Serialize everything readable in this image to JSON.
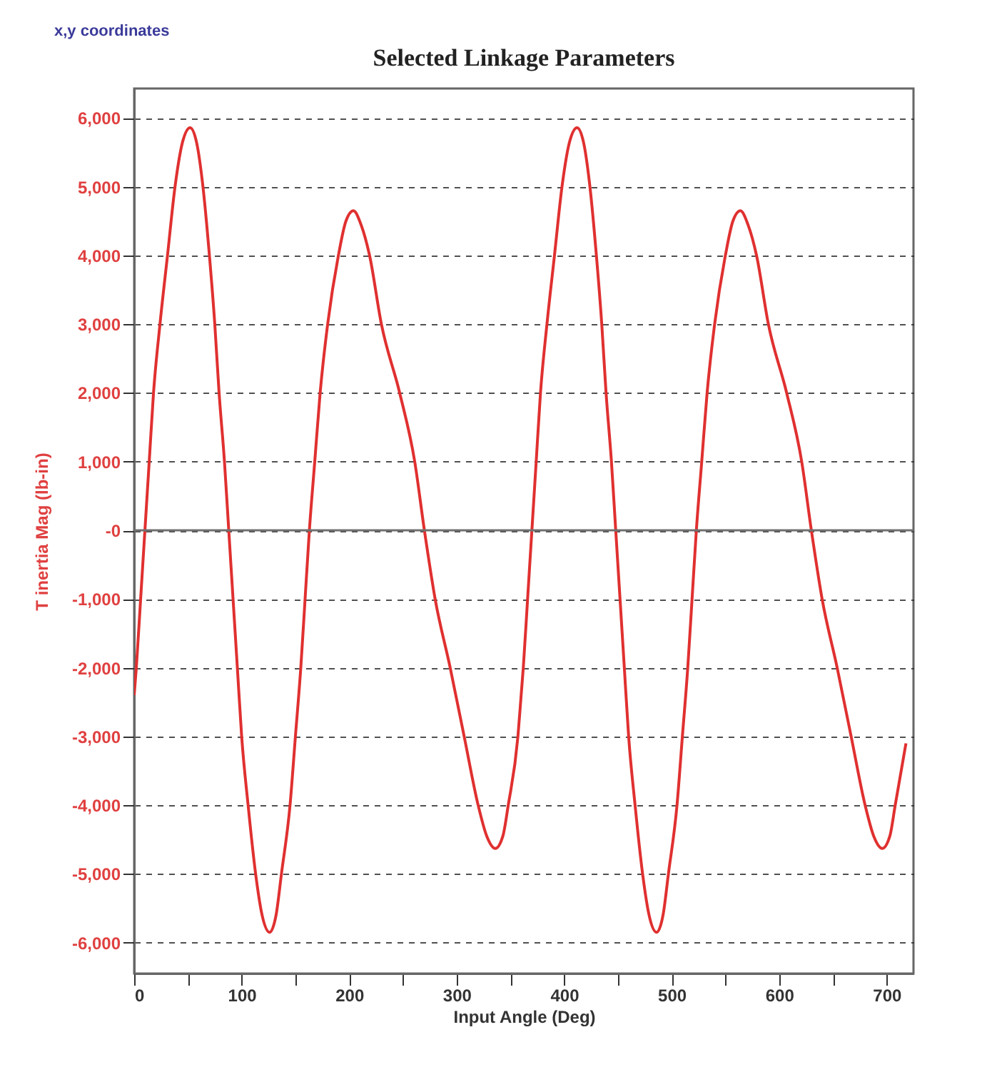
{
  "chart_data": {
    "type": "line",
    "title": "Selected Linkage Parameters",
    "xlabel": "Input Angle (Deg)",
    "ylabel": "T inertia Mag (lb-in)",
    "annotations": [
      "x,y coordinates"
    ],
    "x": [
      0,
      2,
      6,
      10,
      14,
      18,
      24,
      31,
      38,
      45,
      52,
      58,
      64,
      70,
      75,
      79,
      84,
      88,
      92,
      96,
      100,
      106,
      113,
      119,
      126,
      132,
      137,
      145,
      150,
      155,
      159,
      163,
      168,
      173,
      180,
      190,
      197,
      204,
      211,
      219,
      230,
      247,
      261,
      270,
      280,
      294,
      307,
      320,
      328,
      336,
      343,
      348,
      357,
      360,
      362,
      366,
      370,
      374,
      378,
      384,
      391,
      398,
      405,
      412,
      418,
      424,
      430,
      435,
      439,
      444,
      448,
      452,
      456,
      460,
      466,
      473,
      479,
      486,
      492,
      497,
      505,
      510,
      515,
      519,
      523,
      528,
      533,
      540,
      550,
      557,
      564,
      571,
      579,
      590,
      607,
      621,
      630,
      640,
      654,
      667,
      680,
      688,
      696,
      703,
      708,
      718
    ],
    "series": [
      {
        "color": "#e03030",
        "values": [
          -2400,
          -2000,
          -1000,
          0,
          1000,
          2000,
          3000,
          4000,
          5000,
          5650,
          5860,
          5650,
          5000,
          4000,
          3000,
          2000,
          1000,
          0,
          -1000,
          -2000,
          -3000,
          -4000,
          -5000,
          -5600,
          -5850,
          -5600,
          -5000,
          -4000,
          -3000,
          -2000,
          -1000,
          0,
          1000,
          2000,
          3000,
          4000,
          4500,
          4650,
          4450,
          4000,
          3000,
          2000,
          1000,
          0,
          -1000,
          -2000,
          -3000,
          -4000,
          -4450,
          -4630,
          -4450,
          -4000,
          -3000,
          -2400,
          -2000,
          -1000,
          0,
          1000,
          2000,
          3000,
          4000,
          5000,
          5650,
          5860,
          5650,
          5000,
          4000,
          3000,
          2000,
          1000,
          0,
          -1000,
          -2000,
          -3000,
          -4000,
          -5000,
          -5600,
          -5850,
          -5600,
          -5000,
          -4000,
          -3000,
          -2000,
          -1000,
          0,
          1000,
          2000,
          3000,
          4000,
          4500,
          4650,
          4450,
          4000,
          3000,
          2000,
          1000,
          0,
          -1000,
          -2000,
          -3000,
          -4000,
          -4450,
          -4630,
          -4450,
          -4000,
          -3100
        ]
      }
    ],
    "xlim": [
      0,
      725
    ],
    "xticks": [
      0,
      {
        "value": 50,
        "label": null
      },
      100,
      {
        "value": 150,
        "label": null
      },
      200,
      {
        "value": 250,
        "label": null
      },
      300,
      {
        "value": 350,
        "label": null
      },
      400,
      {
        "value": 450,
        "label": null
      },
      500,
      {
        "value": 550,
        "label": null
      },
      600,
      {
        "value": 650,
        "label": null
      },
      700
    ],
    "ylim": [
      -6450,
      6430
    ],
    "yticks": [
      {
        "value": -6000,
        "label": "-6,000"
      },
      {
        "value": -5000,
        "label": "-5,000"
      },
      {
        "value": -4000,
        "label": "-4,000"
      },
      {
        "value": -3000,
        "label": "-3,000"
      },
      {
        "value": -2000,
        "label": "-2,000"
      },
      {
        "value": -1000,
        "label": "-1,000"
      },
      {
        "value": 0,
        "label": "-0"
      },
      {
        "value": 1000,
        "label": "1,000"
      },
      {
        "value": 2000,
        "label": "2,000"
      },
      {
        "value": 3000,
        "label": "3,000"
      },
      {
        "value": 4000,
        "label": "4,000"
      },
      {
        "value": 5000,
        "label": "5,000"
      },
      {
        "value": 6000,
        "label": "6,000"
      }
    ],
    "grid": "y",
    "line_style": "solid",
    "marker": "none",
    "ref_lines": [
      {
        "axis": "y",
        "value": 0,
        "color": "#707070",
        "line_style": "solid"
      }
    ]
  }
}
